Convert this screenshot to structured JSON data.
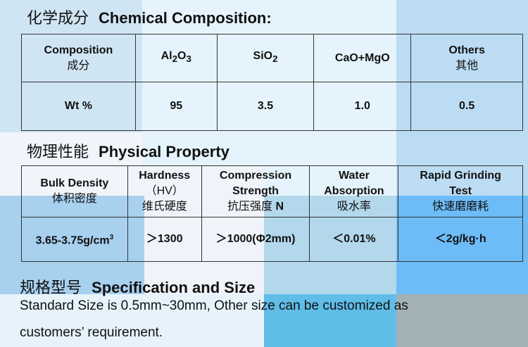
{
  "chemical": {
    "title_cn": "化学成分",
    "title_en": "Chemical Composition:",
    "headers": [
      {
        "en": "Composition",
        "cn": "成分"
      },
      {
        "main": "Al",
        "sub1": "2",
        "mid": "O",
        "sub2": "3"
      },
      {
        "main": "SiO",
        "sub1": "2"
      },
      {
        "en": "CaO+MgO"
      },
      {
        "en": "Others",
        "cn": "其他"
      }
    ],
    "row": [
      "Wt %",
      "95",
      "3.5",
      "1.0",
      "0.5"
    ]
  },
  "physical": {
    "title_cn": "物理性能",
    "title_en": "Physical Property",
    "headers": [
      {
        "l1": "Bulk Density",
        "cn": "体积密度"
      },
      {
        "l1": "Hardness",
        "l2": "（HV）",
        "cn": "维氏硬度"
      },
      {
        "l1": "Compression",
        "l2": "Strength",
        "cn": "抗压强度",
        "unit": "N"
      },
      {
        "l1": "Water",
        "l2": "Absorption",
        "cn": "吸水率"
      },
      {
        "l1": "Rapid Grinding",
        "l2": "Test",
        "cn": "快速磨磨耗"
      }
    ],
    "values": [
      "3.65-3.75g/cm",
      "3",
      "＞1300",
      "＞1000(Φ2mm)",
      "＜0.01%",
      "＜2g/kg·h"
    ]
  },
  "spec": {
    "title_cn": "规格型号",
    "title_en": "Specification and Size",
    "line1": "Standard Size is 0.5mm~30mm, Other size can be customized as",
    "line2": "customers’ requirement."
  }
}
